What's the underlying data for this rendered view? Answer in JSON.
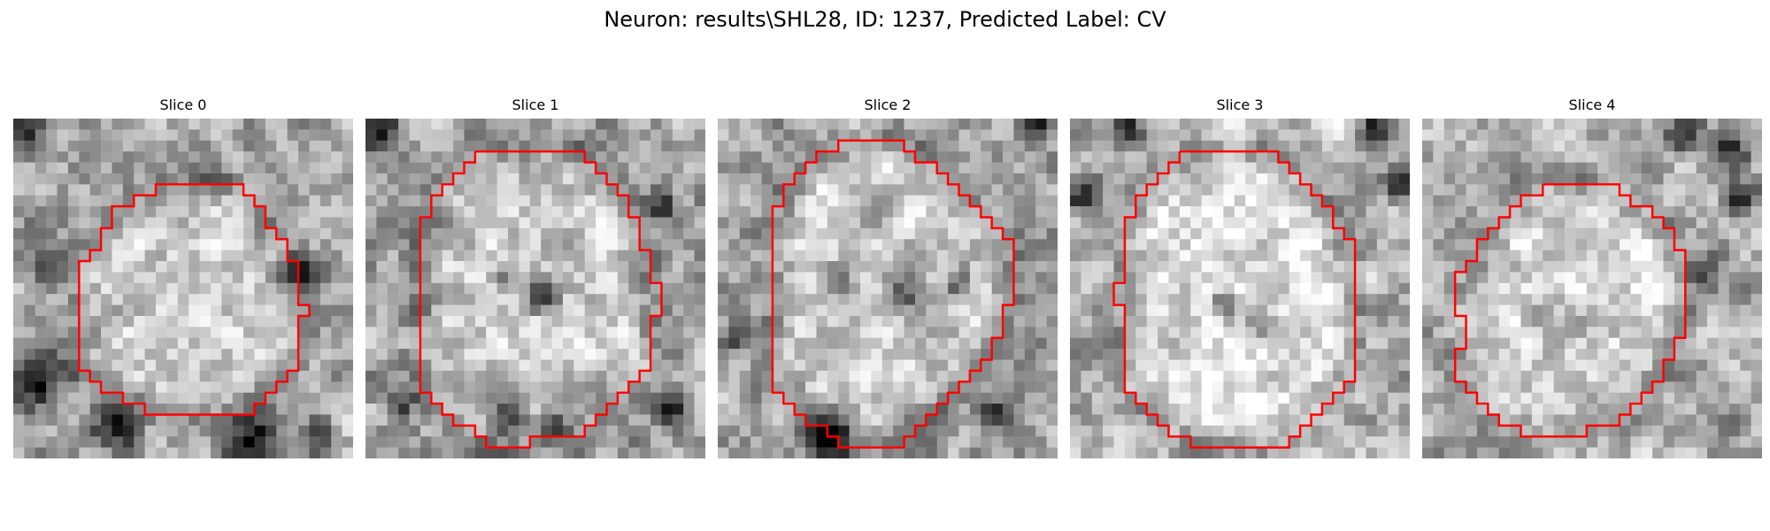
{
  "figure": {
    "title": "Neuron: results\\SHL28, ID: 1237, Predicted Label: CV"
  },
  "panels": [
    {
      "title": "Slice 0",
      "contour": [
        [
          15,
          6
        ],
        [
          21,
          6
        ],
        [
          21,
          7
        ],
        [
          22,
          7
        ],
        [
          22,
          8
        ],
        [
          23,
          8
        ],
        [
          23,
          10
        ],
        [
          24,
          10
        ],
        [
          24,
          11
        ],
        [
          25,
          11
        ],
        [
          25,
          13
        ],
        [
          26,
          13
        ],
        [
          26,
          17
        ],
        [
          27,
          17
        ],
        [
          27,
          18
        ],
        [
          26,
          18
        ],
        [
          26,
          23
        ],
        [
          25,
          23
        ],
        [
          25,
          24
        ],
        [
          24,
          24
        ],
        [
          24,
          25
        ],
        [
          23,
          25
        ],
        [
          23,
          26
        ],
        [
          22,
          26
        ],
        [
          22,
          27
        ],
        [
          12,
          27
        ],
        [
          12,
          26
        ],
        [
          10,
          26
        ],
        [
          10,
          25
        ],
        [
          8,
          25
        ],
        [
          8,
          24
        ],
        [
          7,
          24
        ],
        [
          7,
          23
        ],
        [
          6,
          23
        ],
        [
          6,
          13
        ],
        [
          7,
          13
        ],
        [
          7,
          12
        ],
        [
          8,
          12
        ],
        [
          8,
          10
        ],
        [
          9,
          10
        ],
        [
          9,
          8
        ],
        [
          11,
          8
        ],
        [
          11,
          7
        ],
        [
          13,
          7
        ],
        [
          13,
          6
        ]
      ],
      "dark_spots": [
        [
          1,
          1,
          3.2
        ],
        [
          2.5,
          24,
          4.2
        ],
        [
          9,
          28,
          3.5
        ],
        [
          22,
          29,
          4
        ],
        [
          28,
          29,
          2.5
        ],
        [
          4,
          13,
          3
        ],
        [
          26,
          14,
          2.8
        ]
      ],
      "inner_dark": [],
      "texture_seed": 7,
      "base": 165
    },
    {
      "title": "Slice 1",
      "contour": [
        [
          10,
          3
        ],
        [
          20,
          3
        ],
        [
          20,
          4
        ],
        [
          21,
          4
        ],
        [
          21,
          5
        ],
        [
          22,
          5
        ],
        [
          22,
          6
        ],
        [
          23,
          6
        ],
        [
          23,
          7
        ],
        [
          24,
          7
        ],
        [
          24,
          9
        ],
        [
          25,
          9
        ],
        [
          25,
          12
        ],
        [
          26,
          12
        ],
        [
          26,
          15
        ],
        [
          27,
          15
        ],
        [
          27,
          18
        ],
        [
          26,
          18
        ],
        [
          26,
          23
        ],
        [
          25,
          23
        ],
        [
          25,
          24
        ],
        [
          24,
          24
        ],
        [
          24,
          25
        ],
        [
          23,
          25
        ],
        [
          23,
          26
        ],
        [
          22,
          26
        ],
        [
          22,
          27
        ],
        [
          21,
          27
        ],
        [
          21,
          28
        ],
        [
          20,
          28
        ],
        [
          20,
          29
        ],
        [
          15,
          29
        ],
        [
          15,
          30
        ],
        [
          11,
          30
        ],
        [
          11,
          29
        ],
        [
          10,
          29
        ],
        [
          10,
          28
        ],
        [
          8,
          28
        ],
        [
          8,
          27
        ],
        [
          7,
          27
        ],
        [
          7,
          26
        ],
        [
          6,
          26
        ],
        [
          6,
          25
        ],
        [
          5,
          25
        ],
        [
          5,
          9
        ],
        [
          6,
          9
        ],
        [
          6,
          7
        ],
        [
          7,
          7
        ],
        [
          7,
          6
        ],
        [
          8,
          6
        ],
        [
          8,
          5
        ],
        [
          9,
          5
        ],
        [
          9,
          4
        ],
        [
          10,
          4
        ]
      ],
      "dark_spots": [
        [
          1,
          1,
          3.2
        ],
        [
          28,
          26,
          3
        ],
        [
          13,
          27,
          2.6
        ],
        [
          17,
          28,
          2.2
        ],
        [
          3,
          26,
          2
        ],
        [
          27,
          8,
          2.4
        ]
      ],
      "inner_dark": [
        [
          16,
          16,
          2.6
        ],
        [
          13,
          15,
          1.7
        ]
      ],
      "texture_seed": 19,
      "base": 160
    },
    {
      "title": "Slice 2",
      "contour": [
        [
          12,
          2
        ],
        [
          17,
          2
        ],
        [
          17,
          3
        ],
        [
          18,
          3
        ],
        [
          18,
          4
        ],
        [
          20,
          4
        ],
        [
          20,
          5
        ],
        [
          21,
          5
        ],
        [
          21,
          6
        ],
        [
          22,
          6
        ],
        [
          22,
          7
        ],
        [
          23,
          7
        ],
        [
          23,
          8
        ],
        [
          24,
          8
        ],
        [
          24,
          9
        ],
        [
          25,
          9
        ],
        [
          25,
          10
        ],
        [
          26,
          10
        ],
        [
          26,
          11
        ],
        [
          27,
          11
        ],
        [
          27,
          17
        ],
        [
          26,
          17
        ],
        [
          26,
          20
        ],
        [
          25,
          20
        ],
        [
          25,
          22
        ],
        [
          24,
          22
        ],
        [
          24,
          23
        ],
        [
          23,
          23
        ],
        [
          23,
          24
        ],
        [
          22,
          24
        ],
        [
          22,
          25
        ],
        [
          21,
          25
        ],
        [
          21,
          26
        ],
        [
          20,
          26
        ],
        [
          20,
          27
        ],
        [
          19,
          27
        ],
        [
          19,
          28
        ],
        [
          18,
          28
        ],
        [
          18,
          29
        ],
        [
          17,
          29
        ],
        [
          17,
          30
        ],
        [
          11,
          30
        ],
        [
          11,
          29
        ],
        [
          10,
          29
        ],
        [
          10,
          28
        ],
        [
          8,
          28
        ],
        [
          8,
          27
        ],
        [
          7,
          27
        ],
        [
          7,
          26
        ],
        [
          6,
          26
        ],
        [
          6,
          25
        ],
        [
          5,
          25
        ],
        [
          5,
          8
        ],
        [
          6,
          8
        ],
        [
          6,
          6
        ],
        [
          7,
          6
        ],
        [
          7,
          5
        ],
        [
          8,
          5
        ],
        [
          8,
          4
        ],
        [
          9,
          4
        ],
        [
          9,
          3
        ],
        [
          11,
          3
        ],
        [
          11,
          2
        ]
      ],
      "dark_spots": [
        [
          11,
          29,
          3.6
        ],
        [
          29,
          0.5,
          2.2
        ],
        [
          2,
          20,
          2.2
        ],
        [
          25,
          27,
          2.2
        ]
      ],
      "inner_dark": [
        [
          17,
          16,
          3.2
        ],
        [
          11,
          15,
          2.4
        ],
        [
          22,
          15,
          2.2
        ]
      ],
      "texture_seed": 31,
      "base": 162
    },
    {
      "title": "Slice 3",
      "contour": [
        [
          10,
          3
        ],
        [
          19,
          3
        ],
        [
          19,
          4
        ],
        [
          20,
          4
        ],
        [
          20,
          5
        ],
        [
          21,
          5
        ],
        [
          21,
          6
        ],
        [
          22,
          6
        ],
        [
          22,
          7
        ],
        [
          23,
          7
        ],
        [
          23,
          8
        ],
        [
          24,
          8
        ],
        [
          24,
          10
        ],
        [
          25,
          10
        ],
        [
          25,
          11
        ],
        [
          26,
          11
        ],
        [
          26,
          24
        ],
        [
          25,
          24
        ],
        [
          25,
          25
        ],
        [
          24,
          25
        ],
        [
          24,
          26
        ],
        [
          23,
          26
        ],
        [
          23,
          27
        ],
        [
          22,
          27
        ],
        [
          22,
          28
        ],
        [
          21,
          28
        ],
        [
          21,
          29
        ],
        [
          20,
          29
        ],
        [
          20,
          30
        ],
        [
          11,
          30
        ],
        [
          11,
          29
        ],
        [
          9,
          29
        ],
        [
          9,
          28
        ],
        [
          8,
          28
        ],
        [
          8,
          27
        ],
        [
          7,
          27
        ],
        [
          7,
          26
        ],
        [
          6,
          26
        ],
        [
          6,
          25
        ],
        [
          5,
          25
        ],
        [
          5,
          17
        ],
        [
          4,
          17
        ],
        [
          4,
          15
        ],
        [
          5,
          15
        ],
        [
          5,
          13
        ],
        [
          5,
          9
        ],
        [
          6,
          9
        ],
        [
          6,
          7
        ],
        [
          7,
          7
        ],
        [
          7,
          6
        ],
        [
          8,
          6
        ],
        [
          8,
          5
        ],
        [
          9,
          5
        ],
        [
          9,
          4
        ],
        [
          10,
          4
        ]
      ],
      "dark_spots": [
        [
          1,
          7,
          3.2
        ],
        [
          28,
          1,
          3.4
        ],
        [
          30,
          6,
          2.6
        ],
        [
          5,
          1,
          2.4
        ]
      ],
      "inner_dark": [
        [
          14,
          17,
          2.1
        ],
        [
          17,
          18.5,
          1.8
        ]
      ],
      "texture_seed": 43,
      "base": 178
    },
    {
      "title": "Slice 4",
      "contour": [
        [
          11,
          6
        ],
        [
          18,
          6
        ],
        [
          18,
          7
        ],
        [
          19,
          7
        ],
        [
          19,
          8
        ],
        [
          21,
          8
        ],
        [
          21,
          9
        ],
        [
          22,
          9
        ],
        [
          22,
          10
        ],
        [
          23,
          10
        ],
        [
          23,
          12
        ],
        [
          24,
          12
        ],
        [
          24,
          15
        ],
        [
          24,
          18
        ],
        [
          24,
          20
        ],
        [
          23,
          20
        ],
        [
          23,
          22
        ],
        [
          22,
          22
        ],
        [
          22,
          24
        ],
        [
          21,
          24
        ],
        [
          21,
          25
        ],
        [
          20,
          25
        ],
        [
          20,
          26
        ],
        [
          19,
          26
        ],
        [
          19,
          27
        ],
        [
          18,
          27
        ],
        [
          18,
          28
        ],
        [
          15,
          28
        ],
        [
          15,
          29
        ],
        [
          9,
          29
        ],
        [
          9,
          28
        ],
        [
          7,
          28
        ],
        [
          7,
          27
        ],
        [
          6,
          27
        ],
        [
          6,
          26
        ],
        [
          5,
          26
        ],
        [
          5,
          25
        ],
        [
          4,
          25
        ],
        [
          4,
          24
        ],
        [
          3,
          24
        ],
        [
          3,
          21
        ],
        [
          4,
          21
        ],
        [
          4,
          18
        ],
        [
          3,
          18
        ],
        [
          3,
          14
        ],
        [
          4,
          14
        ],
        [
          4,
          13
        ],
        [
          5,
          13
        ],
        [
          5,
          11
        ],
        [
          6,
          11
        ],
        [
          6,
          10
        ],
        [
          7,
          10
        ],
        [
          7,
          9
        ],
        [
          8,
          9
        ],
        [
          8,
          8
        ],
        [
          9,
          8
        ],
        [
          9,
          7
        ],
        [
          11,
          7
        ]
      ],
      "dark_spots": [
        [
          24,
          1,
          3
        ],
        [
          28,
          3,
          3.2
        ],
        [
          29,
          7,
          2.4
        ],
        [
          26,
          14,
          2.6
        ]
      ],
      "inner_dark": [],
      "texture_seed": 57,
      "base": 172
    }
  ]
}
